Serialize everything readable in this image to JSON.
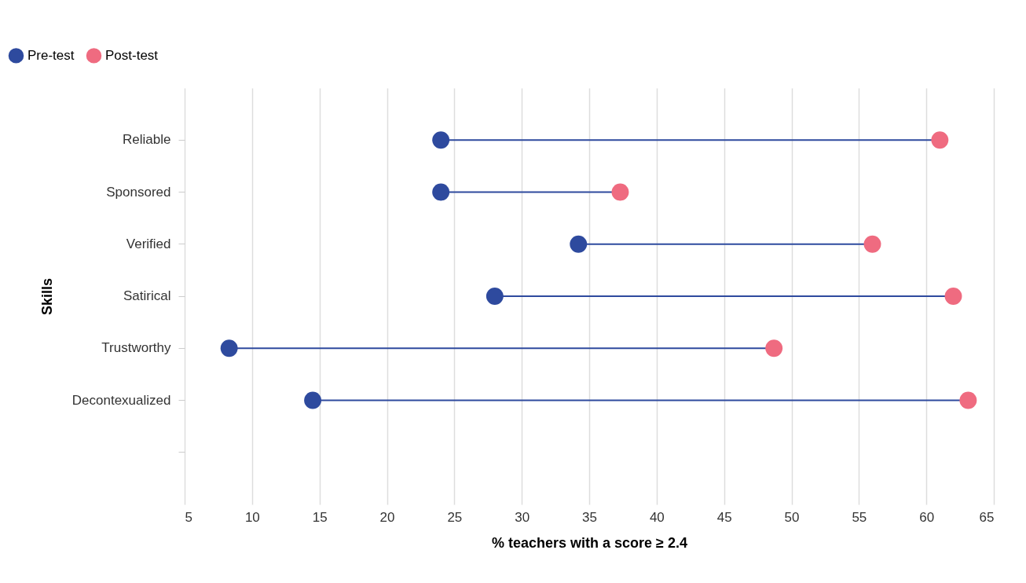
{
  "chart_data": {
    "type": "lollipop",
    "orientation": "horizontal",
    "xlabel": "% teachers with a score ≥ 2.4",
    "ylabel": "Skills",
    "categories": [
      "Reliable",
      "Sponsored",
      "Verified",
      "Satirical",
      "Trustworthy",
      "Decontexualized",
      null
    ],
    "series": [
      {
        "name": "Pre-test",
        "color": "#2e4a9e",
        "values": [
          24,
          24,
          34.2,
          28,
          8.3,
          14.5,
          null
        ]
      },
      {
        "name": "Post-test",
        "color": "#ef6b80",
        "values": [
          61,
          37.3,
          56,
          62,
          48.7,
          63.1,
          null
        ]
      }
    ],
    "xlim": [
      5,
      65
    ],
    "xticks": [
      5,
      10,
      15,
      20,
      25,
      30,
      35,
      40,
      45,
      50,
      55,
      60,
      65
    ],
    "grid": "x",
    "legend": "top left",
    "marker": "circle"
  }
}
